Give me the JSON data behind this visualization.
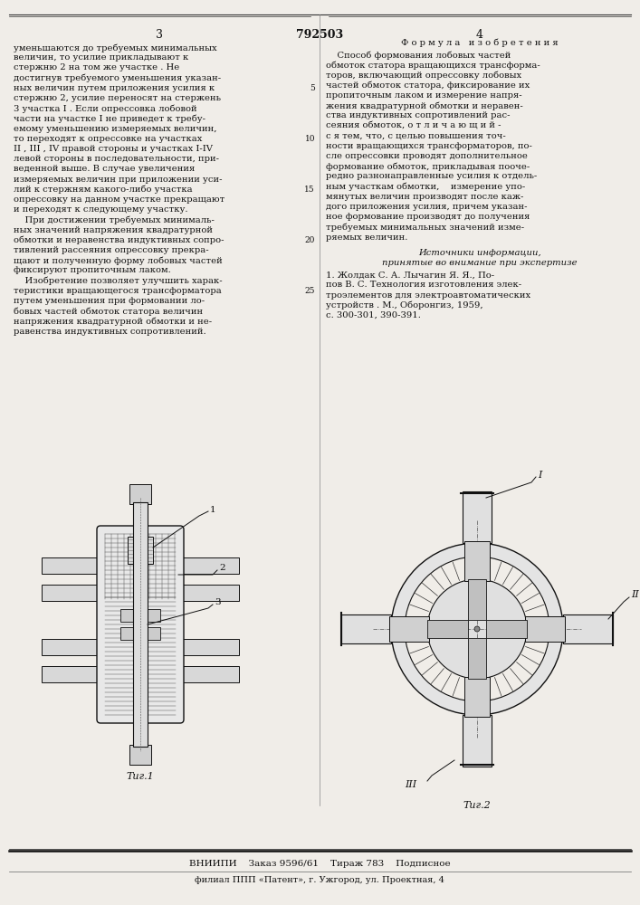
{
  "page_width": 7.07,
  "page_height": 10.0,
  "bg_color": "#f0ede8",
  "text_color": "#111111",
  "patent_number": "792503",
  "left_col_text": [
    "уменьшаются до требуемых минимальных",
    "величин, то усилие прикладывают к",
    "стержню 2 на том же участке . Не",
    "достигнув требуемого уменьшения указан-",
    "ных величин путем приложения усилия к",
    "стержню 2, усилие переносят на стержень",
    "3 участка І . Если опрессовка лобовой",
    "части на участке І не приведет к требу-",
    "емому уменьшению измеряемых величин,",
    "то переходят к опрессовке на участках",
    "ІІ , ІІІ , ІV правой стороны и участках І-ІV",
    "левой стороны в последовательности, при-",
    "веденной выше. В случае увеличения",
    "измеряемых величин при приложении уси-",
    "лий к стержням какого-либо участка",
    "опрессовку на данном участке прекращают",
    "и переходят к следующему участку.",
    "    При достижении требуемых минималь-",
    "ных значений напряжения квадратурной",
    "обмотки и неравенства индуктивных сопро-",
    "тивлений рассеяния опрессовку прекра-",
    "щают и полученную форму лобовых частей",
    "фиксируют пропиточным лаком.",
    "    Изобретение позволяет улучшить харак-",
    "теристики вращающегося трансформатора",
    "путем уменьшения при формовании ло-",
    "бовых частей обмоток статора величин",
    "напряжения квадратурной обмотки и не-",
    "равенства индуктивных сопротивлений."
  ],
  "right_col_header": "Ф о р м у л а   и з о б р е т е н и я",
  "right_col_text": [
    "    Способ формования лобовых частей",
    "обмоток статора вращающихся трансформа-",
    "торов, включающий опрессовку лобовых",
    "частей обмоток статора, фиксирование их",
    "пропиточным лаком и измерение напря-",
    "жения квадратурной обмотки и неравен-",
    "ства индуктивных сопротивлений рас-",
    "сеяния обмоток, о т л и ч а ю щ и й -",
    "с я тем, что, с целью повышения точ-",
    "ности вращающихся трансформаторов, по-",
    "сле опрессовки проводят дополнительное",
    "формование обмоток, прикладывая пооче-",
    "редно разнонаправленные усилия к отдель-",
    "ным участкам обмотки,    измерение упо-",
    "мянутых величин производят после каж-",
    "дого приложения усилия, причем указан-",
    "ное формование производят до получения",
    "требуемых минимальных значений изме-",
    "ряемых величин."
  ],
  "sources_header": "Источники информации,",
  "sources_subheader": "принятые во внимание при экспертизе",
  "fig1_label": "Τиг.1",
  "fig2_label": "Τиг.2",
  "bottom_bar": "ВНИИПИ    Заказ 9596/61    Тираж 783    Подписное",
  "bottom_branch": "филиал ППП «Патент», г. Ужгород, ул. Проектная, 4"
}
